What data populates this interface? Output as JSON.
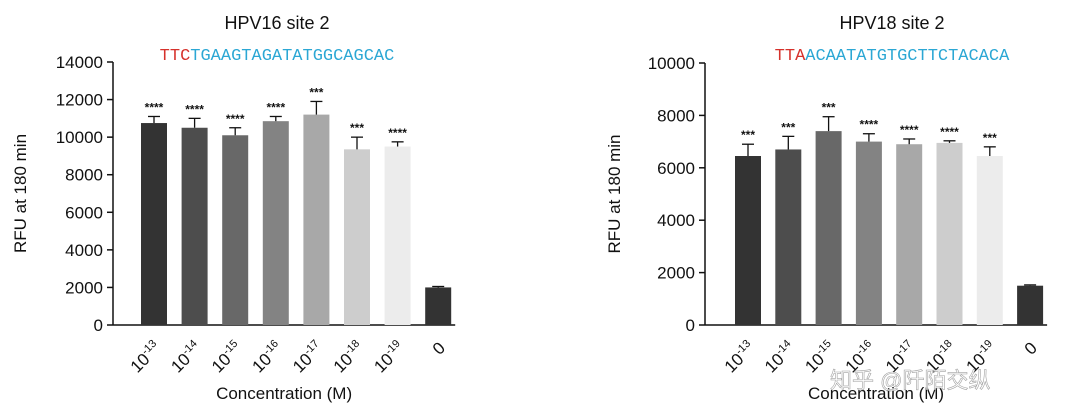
{
  "watermark": "知乎 @阡陌交纵",
  "chart_data": [
    {
      "type": "bar",
      "title": "HPV16 site 2",
      "sequence_prefix": "TTC",
      "sequence": "TGAAGTAGATATGGCAGCAC",
      "sequence_prefix_color": "#d6312b",
      "sequence_color": "#2ba7d4",
      "y_label": "RFU at 180 min",
      "x_label": "Concentration (M)",
      "categories": [
        {
          "base": "10",
          "exponent": "-13"
        },
        {
          "base": "10",
          "exponent": "-14"
        },
        {
          "base": "10",
          "exponent": "-15"
        },
        {
          "base": "10",
          "exponent": "-16"
        },
        {
          "base": "10",
          "exponent": "-17"
        },
        {
          "base": "10",
          "exponent": "-18"
        },
        {
          "base": "10",
          "exponent": "-19"
        },
        "0"
      ],
      "values": [
        10750,
        10500,
        10100,
        10850,
        11200,
        9350,
        9500,
        2000
      ],
      "errors": [
        350,
        500,
        400,
        250,
        700,
        650,
        250,
        50
      ],
      "significance": [
        "****",
        "****",
        "****",
        "****",
        "***",
        "***",
        "****",
        null
      ],
      "colors": [
        "#333333",
        "#4d4d4d",
        "#686868",
        "#838383",
        "#a8a8a8",
        "#cdcdcd",
        "#ececec",
        "#333333"
      ],
      "ylim": [
        0,
        14000
      ],
      "yticks": [
        0,
        2000,
        4000,
        6000,
        8000,
        10000,
        12000,
        14000
      ]
    },
    {
      "type": "bar",
      "title": "HPV18 site 2",
      "sequence_prefix": "TTA",
      "sequence": "ACAATATGTGCTTCTACACA",
      "sequence_prefix_color": "#d6312b",
      "sequence_color": "#2ba7d4",
      "y_label": "RFU at 180 min",
      "x_label": "Concentration (M)",
      "categories": [
        {
          "base": "10",
          "exponent": "-13"
        },
        {
          "base": "10",
          "exponent": "-14"
        },
        {
          "base": "10",
          "exponent": "-15"
        },
        {
          "base": "10",
          "exponent": "-16"
        },
        {
          "base": "10",
          "exponent": "-17"
        },
        {
          "base": "10",
          "exponent": "-18"
        },
        {
          "base": "10",
          "exponent": "-19"
        },
        "0"
      ],
      "values": [
        6450,
        6700,
        7400,
        7000,
        6900,
        6950,
        6450,
        1500
      ],
      "errors": [
        450,
        500,
        550,
        300,
        200,
        80,
        350,
        30
      ],
      "significance": [
        "***",
        "***",
        "***",
        "****",
        "****",
        "****",
        "***",
        null
      ],
      "colors": [
        "#333333",
        "#4d4d4d",
        "#686868",
        "#838383",
        "#a8a8a8",
        "#cdcdcd",
        "#ececec",
        "#333333"
      ],
      "ylim": [
        0,
        10000
      ],
      "yticks": [
        0,
        2000,
        4000,
        6000,
        8000,
        10000
      ]
    }
  ]
}
